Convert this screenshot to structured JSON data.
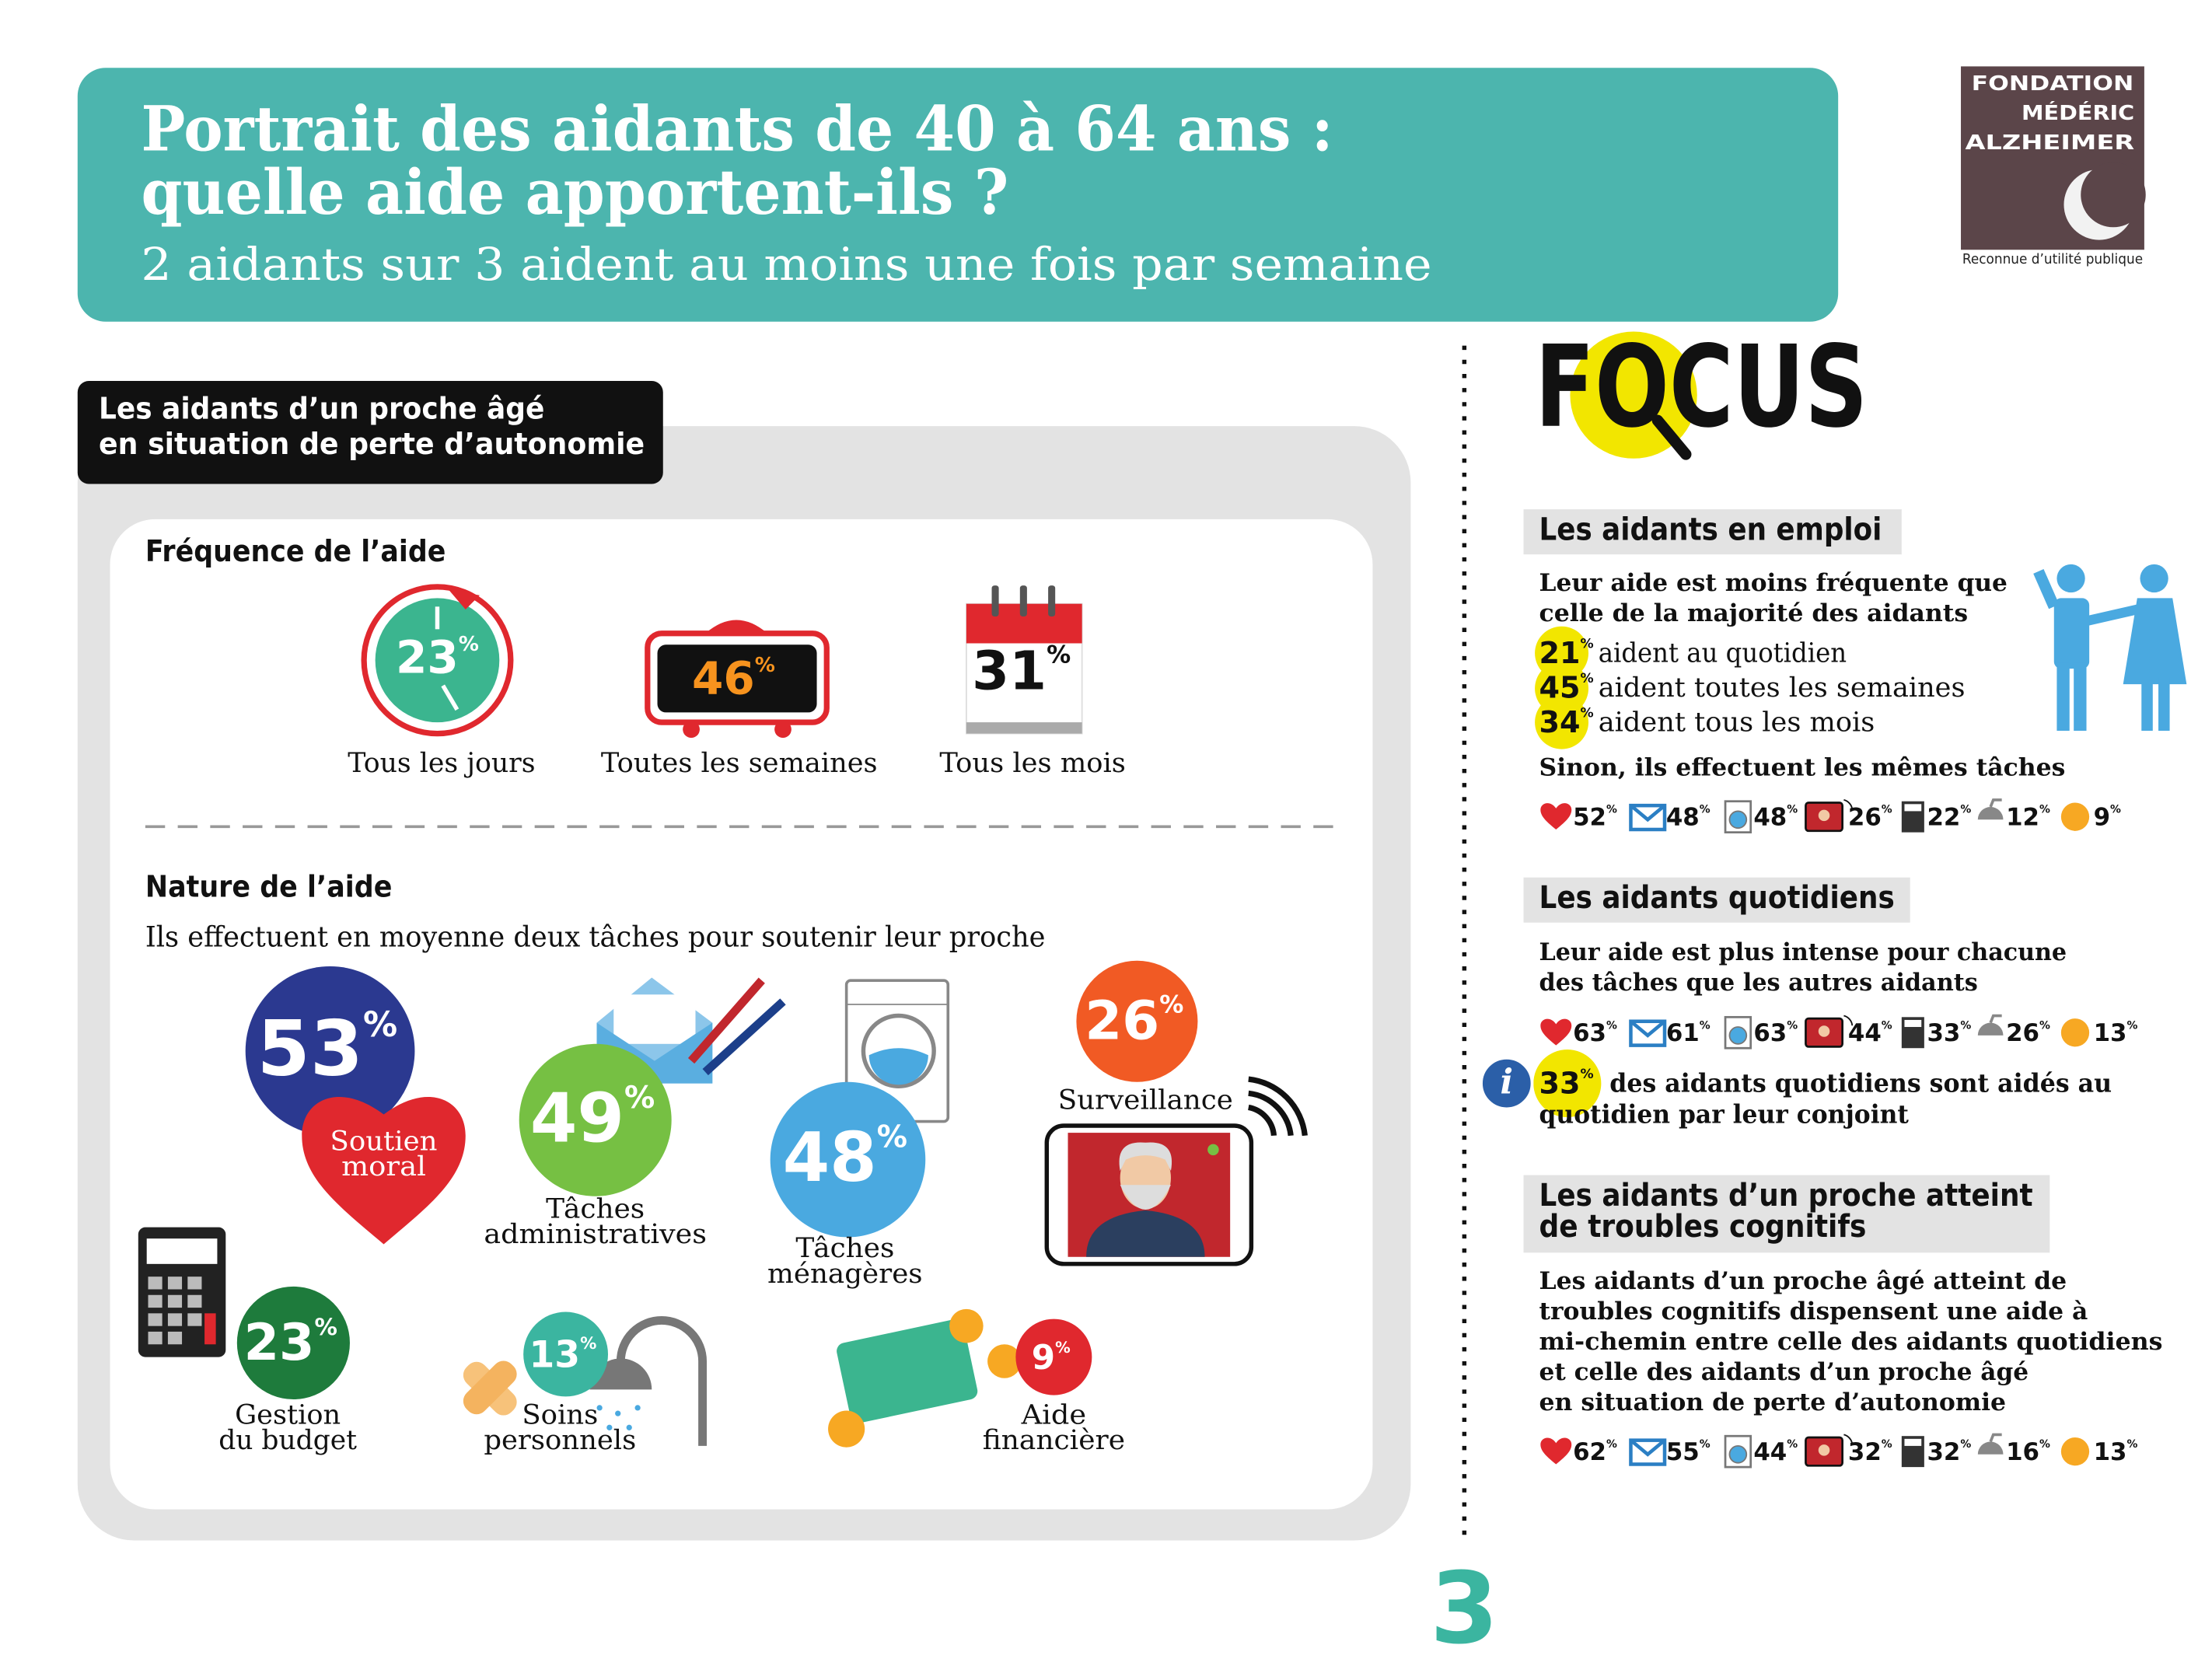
{
  "header": {
    "title_lines": [
      "Portrait des aidants de 40 à 64 ans :",
      "quelle aide apportent-ils ?"
    ],
    "subtitle": "2 aidants sur 3 aident au moins une fois par semaine"
  },
  "logo": {
    "lines": [
      "FONDATION",
      "MÉDÉRIC",
      "ALZHEIMER"
    ],
    "caption": "Reconnue d’utilité publique"
  },
  "percent_sign": "%",
  "panel": {
    "tag_lines": [
      "Les aidants d’un proche âgé",
      "en situation de perte d’autonomie"
    ],
    "frequency": {
      "heading": "Fréquence de l’aide",
      "items": [
        {
          "value": 23,
          "label": "Tous les jours"
        },
        {
          "value": 46,
          "label": "Toutes les semaines"
        },
        {
          "value": 31,
          "label": "Tous les mois"
        }
      ]
    },
    "nature": {
      "heading": "Nature de l’aide",
      "subtitle": "Ils effectuent en moyenne deux tâches pour soutenir leur proche",
      "items": [
        {
          "value": 53,
          "label_lines": [
            "Soutien",
            "moral"
          ]
        },
        {
          "value": 49,
          "label_lines": [
            "Tâches",
            "administratives"
          ]
        },
        {
          "value": 48,
          "label_lines": [
            "Tâches",
            "ménagères"
          ]
        },
        {
          "value": 26,
          "label_lines": [
            "Surveillance"
          ]
        },
        {
          "value": 23,
          "label_lines": [
            "Gestion",
            "du budget"
          ]
        },
        {
          "value": 13,
          "label_lines": [
            "Soins",
            "personnels"
          ]
        },
        {
          "value": 9,
          "label_lines": [
            "Aide",
            "financière"
          ]
        }
      ]
    }
  },
  "focus": {
    "title": "FOCUS",
    "sections": [
      {
        "heading_lines": [
          "Les aidants en emploi"
        ],
        "description_lines": [
          "Leur aide est moins fréquente que",
          "celle de la majorité des aidants"
        ],
        "breakdown": [
          {
            "value": 21,
            "text": "aident au quotidien"
          },
          {
            "value": 45,
            "text": "aident toutes les semaines"
          },
          {
            "value": 34,
            "text": "aident tous les mois"
          }
        ],
        "note": "Sinon, ils effectuent les mêmes tâches",
        "stats": [
          52,
          48,
          48,
          26,
          22,
          12,
          9
        ]
      },
      {
        "heading_lines": [
          "Les aidants quotidiens"
        ],
        "description_lines": [
          "Leur aide est plus intense pour chacune",
          "des tâches que les autres aidants"
        ],
        "stats": [
          63,
          61,
          63,
          44,
          33,
          26,
          13
        ],
        "info": {
          "value": 33,
          "lines": [
            "des aidants quotidiens sont aidés au",
            "quotidien par leur conjoint"
          ]
        }
      },
      {
        "heading_lines": [
          "Les aidants d’un proche atteint",
          "de troubles cognitifs"
        ],
        "description_lines": [
          "Les aidants d’un proche âgé atteint de",
          "troubles cognitifs dispensent une aide à",
          "mi-chemin entre celle des aidants quotidiens",
          "et celle des aidants d’un proche âgé",
          "en situation de perte d’autonomie"
        ],
        "stats": [
          62,
          55,
          44,
          32,
          32,
          16,
          13
        ]
      }
    ]
  },
  "page_number": "3"
}
